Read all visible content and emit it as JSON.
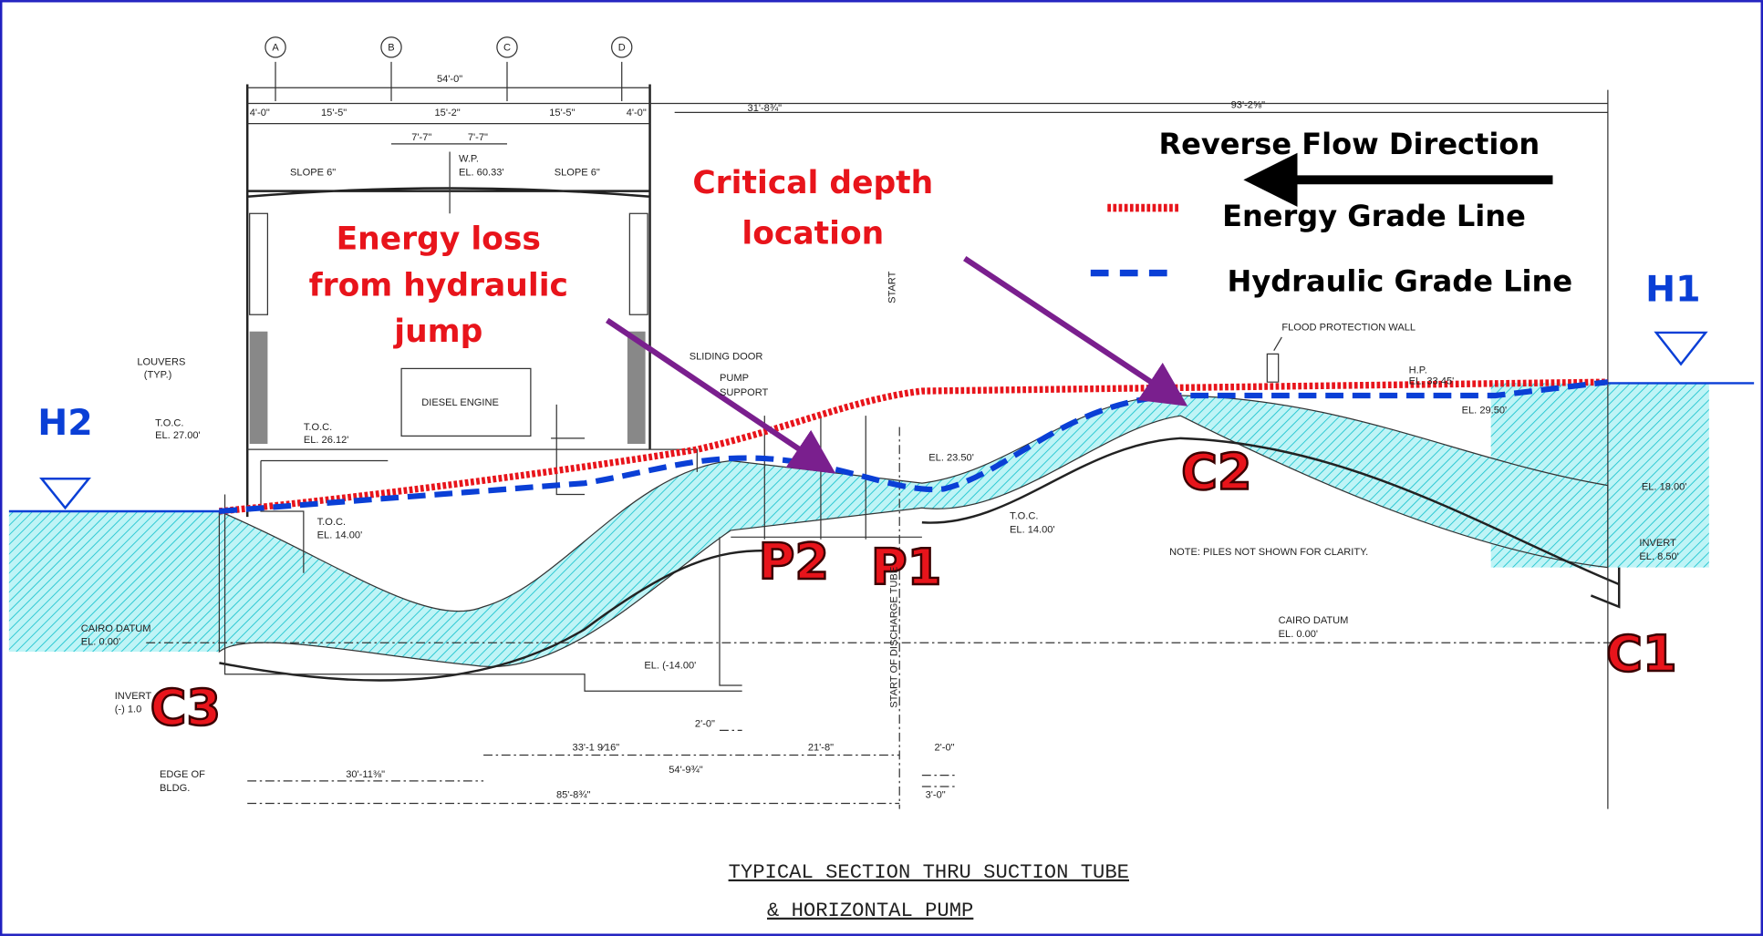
{
  "legend": {
    "title": "Reverse Flow Direction",
    "items": [
      "Energy Grade Line",
      "Hydraulic Grade Line"
    ]
  },
  "annotations": {
    "critical_depth": [
      "Critical depth",
      "location"
    ],
    "energy_loss": [
      "Energy loss",
      "from hydraulic",
      "jump"
    ]
  },
  "section_labels": [
    "H1",
    "H2",
    "C1",
    "C2",
    "C3",
    "P1",
    "P2"
  ],
  "drawing": {
    "columns": [
      "A",
      "B",
      "C",
      "D"
    ],
    "dimensions": [
      "54'-0\"",
      "4'-0\"",
      "15'-5\"",
      "15'-2\"",
      "15'-5\"",
      "4'-0\"",
      "31'-8¾\"",
      "93'-2⅝\"",
      "7'-7\"",
      "7'-7\"",
      "2'-0\"",
      "33'-1 9⁄16\"",
      "21'-8\"",
      "2'-0\"",
      "54'-9¾\"",
      "30'-11⅜\"",
      "85'-8¾\"",
      "3'-0\""
    ],
    "notes": [
      "SLOPE 6\"",
      "W.P.",
      "EL. 60.33'",
      "SLOPE 6\"",
      "LOUVERS",
      "(TYP.)",
      "T.O.C.",
      "EL. 27.00'",
      "T.O.C.",
      "EL. 26.12'",
      "DIESEL ENGINE",
      "T.O.C.",
      "EL. 14.00'",
      "SLIDING DOOR",
      "PUMP",
      "SUPPORT",
      "EL. 23.50'",
      "T.O.C.",
      "EL. 14.00'",
      "FLOOD PROTECTION WALL",
      "H.P.",
      "EL. 33.45'",
      "EL. 29.50'",
      "EL. 18.00'",
      "INVERT",
      "EL. 8.50'",
      "NOTE: PILES NOT SHOWN FOR CLARITY.",
      "CAIRO DATUM",
      "EL. 0.00'",
      "CAIRO DATUM",
      "EL. 0.00'",
      "EL. (-14.00'",
      "INVERT",
      "(-) 1.0",
      "EDGE OF",
      "BLDG.",
      "START OF DISCHARGE TUBE",
      "START"
    ]
  },
  "title": [
    "TYPICAL SECTION THRU SUCTION TUBE",
    "& HORIZONTAL PUMP"
  ]
}
